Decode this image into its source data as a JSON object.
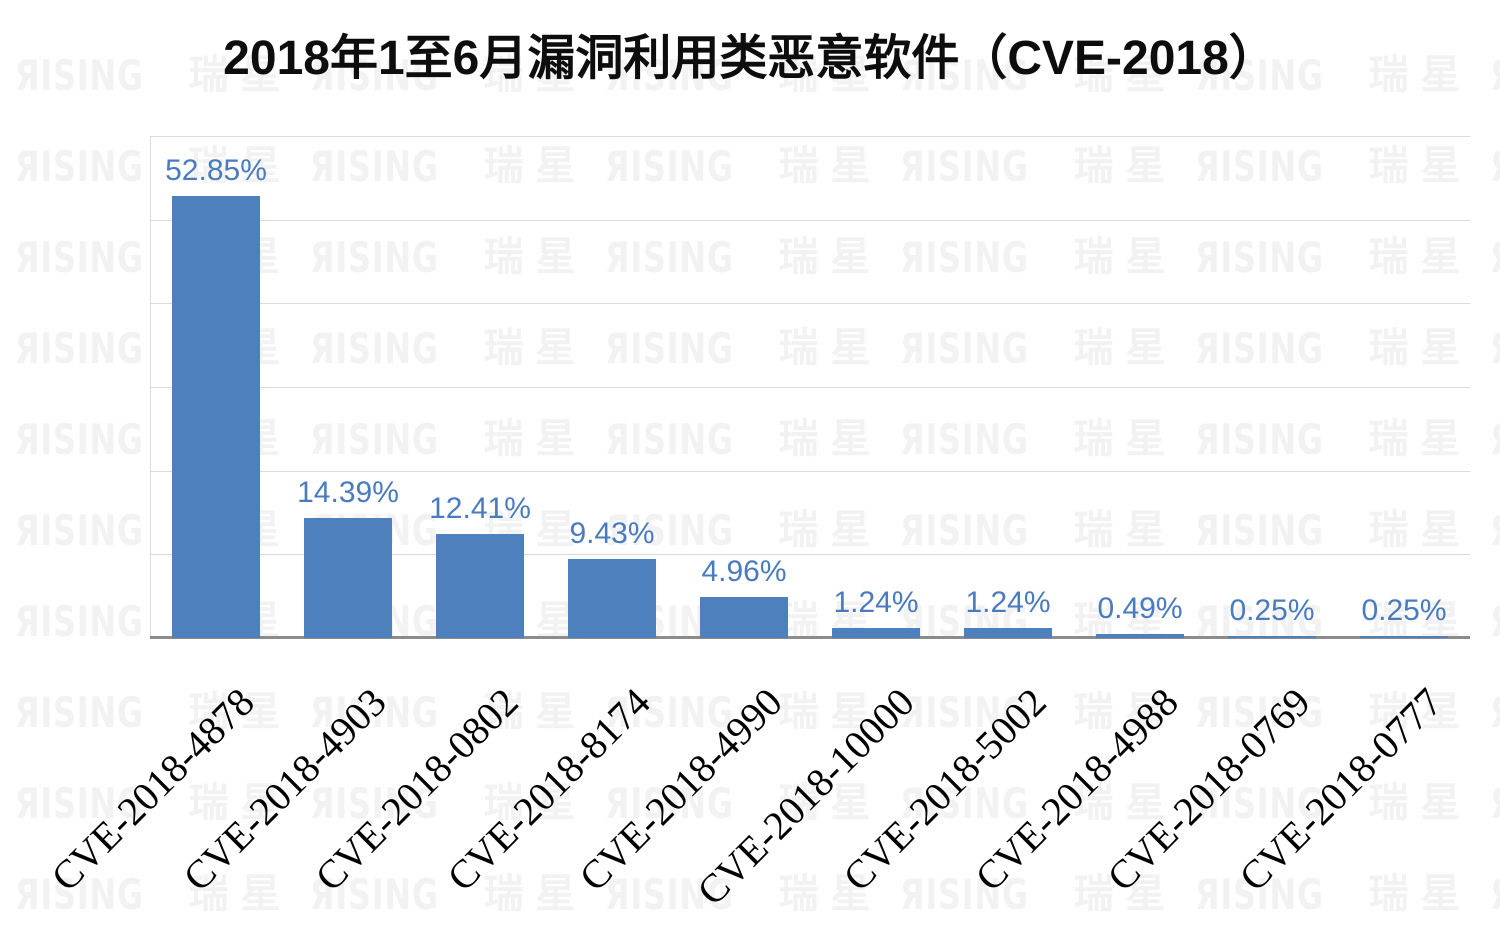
{
  "title": "2018年1至6月漏洞利用类恶意软件（CVE-2018）",
  "watermark": {
    "text": "RISING 瑞星",
    "latin_display": "ЯISING",
    "cjk_display": "瑞星"
  },
  "colors": {
    "bar": "#4d80bc",
    "value_label": "#4a7bbf",
    "gridline": "#d9d9d9",
    "axis_baseline": "#8c8c8c",
    "watermark": "#f2f2f2",
    "title": "#0d0d0d",
    "x_label": "#000000",
    "background": "#ffffff"
  },
  "chart_data": {
    "type": "bar",
    "title": "2018年1至6月漏洞利用类恶意软件（CVE-2018）",
    "categories": [
      "CVE-2018-4878",
      "CVE-2018-4903",
      "CVE-2018-0802",
      "CVE-2018-8174",
      "CVE-2018-4990",
      "CVE-2018-10000",
      "CVE-2018-5002",
      "CVE-2018-4988",
      "CVE-2018-0769",
      "CVE-2018-0777"
    ],
    "values": [
      52.85,
      14.39,
      12.41,
      9.43,
      4.96,
      1.24,
      1.24,
      0.49,
      0.25,
      0.25
    ],
    "data_labels": [
      "52.85%",
      "14.39%",
      "12.41%",
      "9.43%",
      "4.96%",
      "1.24%",
      "1.24%",
      "0.49%",
      "0.25%",
      "0.25%"
    ],
    "xlabel": "",
    "ylabel": "",
    "ylim": [
      0,
      60
    ],
    "gridline_interval": 10,
    "grid": true,
    "legend": false,
    "data_label_position": "above-bar",
    "category_label_rotation_deg": 45
  }
}
